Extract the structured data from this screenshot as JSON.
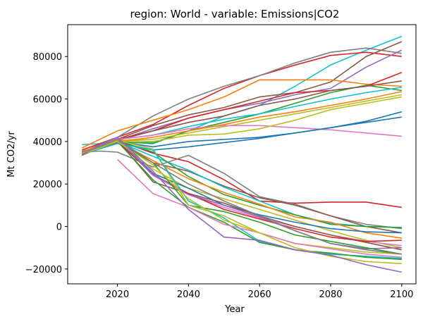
{
  "chart_data": {
    "type": "line",
    "title": "region: World - variable: Emissions|CO2",
    "xlabel": "Year",
    "ylabel": "Mt CO2/yr",
    "xlim": [
      2006,
      2104
    ],
    "ylim": [
      -27000,
      95000
    ],
    "x_ticks": [
      2020,
      2040,
      2060,
      2080,
      2100
    ],
    "y_ticks": [
      -20000,
      0,
      20000,
      40000,
      60000,
      80000
    ],
    "x_tick_labels": [
      "2020",
      "2040",
      "2060",
      "2080",
      "2100"
    ],
    "y_tick_labels": [
      "−20000",
      "0",
      "20000",
      "40000",
      "60000",
      "80000"
    ],
    "grid": false,
    "legend": false,
    "series": [
      {
        "color": "#17becf",
        "x": [
          2010,
          2020,
          2030,
          2040,
          2050,
          2060,
          2070,
          2080,
          2090,
          2100
        ],
        "y": [
          38500,
          39500,
          39500,
          45000,
          52000,
          57000,
          66000,
          76000,
          83000,
          89500
        ]
      },
      {
        "color": "#d62728",
        "x": [
          2010,
          2020,
          2030,
          2040,
          2050,
          2060,
          2070,
          2080,
          2090,
          2100
        ],
        "y": [
          36000,
          42000,
          48000,
          57000,
          65000,
          71000,
          76000,
          80500,
          82000,
          80000
        ]
      },
      {
        "color": "#7f7f7f",
        "x": [
          2010,
          2020,
          2030,
          2040,
          2050,
          2060,
          2070,
          2080,
          2090,
          2100
        ],
        "y": [
          35000,
          42000,
          52000,
          60000,
          66000,
          71000,
          77000,
          82000,
          84000,
          81500
        ]
      },
      {
        "color": "#8c564b",
        "x": [
          2010,
          2020,
          2030,
          2040,
          2050,
          2060,
          2070,
          2080,
          2090,
          2100
        ],
        "y": [
          34500,
          41000,
          47500,
          52500,
          56000,
          61000,
          63000,
          68000,
          80000,
          87000
        ]
      },
      {
        "color": "#9467bd",
        "x": [
          2010,
          2020,
          2030,
          2040,
          2050,
          2060,
          2070,
          2080,
          2090,
          2100
        ],
        "y": [
          34500,
          40500,
          46000,
          51000,
          55000,
          58000,
          62000,
          65000,
          75000,
          83000
        ]
      },
      {
        "color": "#ff7f0e",
        "x": [
          2010,
          2020,
          2030,
          2040,
          2050,
          2060,
          2070,
          2080,
          2090,
          2100
        ],
        "y": [
          37000,
          45000,
          50000,
          55000,
          61000,
          69000,
          69000,
          69000,
          67000,
          66000
        ]
      },
      {
        "color": "#d62728",
        "x": [
          2010,
          2020,
          2030,
          2040,
          2050,
          2060,
          2070,
          2080,
          2090,
          2100
        ],
        "y": [
          35000,
          41000,
          45000,
          51000,
          55000,
          59000,
          63000,
          64000,
          66000,
          72500
        ]
      },
      {
        "color": "#2ca02c",
        "x": [
          2010,
          2020,
          2030,
          2040,
          2050,
          2060,
          2070,
          2080,
          2090,
          2100
        ],
        "y": [
          34000,
          40000,
          39000,
          45000,
          49000,
          53000,
          58000,
          63000,
          66500,
          64000
        ]
      },
      {
        "color": "#8c564b",
        "x": [
          2010,
          2020,
          2030,
          2040,
          2050,
          2060,
          2070,
          2080,
          2090,
          2100
        ],
        "y": [
          35000,
          40500,
          45000,
          49000,
          52000,
          57000,
          60000,
          64000,
          66000,
          68500
        ]
      },
      {
        "color": "#17becf",
        "x": [
          2010,
          2020,
          2030,
          2040,
          2050,
          2060,
          2070,
          2080,
          2090,
          2100
        ],
        "y": [
          34000,
          41000,
          43000,
          47000,
          50500,
          53000,
          56500,
          60000,
          63000,
          65500
        ]
      },
      {
        "color": "#bcbd22",
        "x": [
          2010,
          2020,
          2030,
          2040,
          2050,
          2060,
          2070,
          2080,
          2090,
          2100
        ],
        "y": [
          34500,
          40500,
          41000,
          44000,
          47000,
          50000,
          53000,
          56000,
          59000,
          62000
        ]
      },
      {
        "color": "#e377c2",
        "x": [
          2010,
          2020,
          2030,
          2040,
          2050,
          2060,
          2070,
          2080,
          2090,
          2100
        ],
        "y": [
          34000,
          41000,
          43000,
          46000,
          47500,
          47500,
          46500,
          45500,
          44000,
          42500
        ]
      },
      {
        "color": "#bcbd22",
        "x": [
          2010,
          2020,
          2030,
          2040,
          2050,
          2060,
          2070,
          2080,
          2090,
          2100
        ],
        "y": [
          35000,
          40500,
          40000,
          43000,
          43500,
          46000,
          50000,
          55000,
          58000,
          61000
        ]
      },
      {
        "color": "#1f77b4",
        "x": [
          2010,
          2020,
          2030,
          2040,
          2050,
          2060,
          2070,
          2080,
          2090,
          2100
        ],
        "y": [
          34000,
          40000,
          37500,
          40000,
          41000,
          42000,
          44000,
          46500,
          49500,
          54000
        ]
      },
      {
        "color": "#1f77b4",
        "x": [
          2010,
          2020,
          2030,
          2040,
          2050,
          2060,
          2070,
          2080,
          2090,
          2100
        ],
        "y": [
          35000,
          39500,
          36000,
          37500,
          39500,
          41500,
          44000,
          46500,
          49000,
          51500
        ]
      },
      {
        "color": "#ff7f0e",
        "x": [
          2010,
          2020,
          2030,
          2040,
          2050,
          2060,
          2070,
          2080,
          2090,
          2100
        ],
        "y": [
          34000,
          40000,
          42000,
          45000,
          48000,
          51500,
          54000,
          57000,
          60000,
          63500
        ]
      },
      {
        "color": "#d62728",
        "x": [
          2010,
          2020,
          2030,
          2040,
          2050,
          2060,
          2070,
          2080,
          2090,
          2100
        ],
        "y": [
          34000,
          40500,
          34500,
          30500,
          22000,
          12000,
          11000,
          11500,
          11500,
          9000
        ]
      },
      {
        "color": "#7f7f7f",
        "x": [
          2010,
          2015,
          2020,
          2030,
          2040,
          2050,
          2060,
          2070,
          2080,
          2090,
          2100
        ],
        "y": [
          35000,
          35500,
          35000,
          28000,
          33500,
          25000,
          14000,
          10500,
          5000,
          1000,
          -1000
        ]
      },
      {
        "color": "#8c564b",
        "x": [
          2010,
          2020,
          2030,
          2040,
          2050,
          2060,
          2070,
          2080,
          2090,
          2100
        ],
        "y": [
          34000,
          39500,
          30000,
          26000,
          19000,
          13500,
          10000,
          5000,
          0,
          -3000
        ]
      },
      {
        "color": "#17becf",
        "x": [
          2010,
          2020,
          2030,
          2040,
          2050,
          2060,
          2070,
          2080,
          2090,
          2100
        ],
        "y": [
          34000,
          40000,
          33000,
          26500,
          18500,
          12000,
          5500,
          1500,
          0,
          -500
        ]
      },
      {
        "color": "#2ca02c",
        "x": [
          2010,
          2020,
          2030,
          2040,
          2050,
          2060,
          2070,
          2080,
          2090,
          2100
        ],
        "y": [
          34000,
          40500,
          35000,
          23500,
          15000,
          10000,
          5500,
          1000,
          0,
          -500
        ]
      },
      {
        "color": "#ff7f0e",
        "x": [
          2010,
          2020,
          2030,
          2040,
          2050,
          2060,
          2070,
          2080,
          2090,
          2100
        ],
        "y": [
          35500,
          40000,
          31000,
          22500,
          16000,
          10500,
          4500,
          2000,
          -3000,
          -5500
        ]
      },
      {
        "color": "#bcbd22",
        "x": [
          2010,
          2020,
          2030,
          2040,
          2050,
          2060,
          2070,
          2080,
          2090,
          2100
        ],
        "y": [
          34500,
          40000,
          27000,
          18000,
          13000,
          8000,
          3000,
          -2000,
          -6500,
          -10000
        ]
      },
      {
        "color": "#1f77b4",
        "x": [
          2010,
          2020,
          2030,
          2040,
          2050,
          2060,
          2070,
          2080,
          2090,
          2100
        ],
        "y": [
          34000,
          41000,
          25000,
          18000,
          10000,
          5500,
          2000,
          -1000,
          -2500,
          -3000
        ]
      },
      {
        "color": "#e377c2",
        "x": [
          2010,
          2020,
          2030,
          2040,
          2050,
          2060,
          2070,
          2080,
          2090,
          2100
        ],
        "y": [
          33500,
          41500,
          24000,
          15000,
          9000,
          4000,
          0,
          -4000,
          -7000,
          -9000
        ]
      },
      {
        "color": "#8c564b",
        "x": [
          2010,
          2020,
          2030,
          2040,
          2050,
          2060,
          2070,
          2080,
          2090,
          2100
        ],
        "y": [
          33500,
          40500,
          21000,
          15500,
          11000,
          5000,
          0,
          -4000,
          -7500,
          -11000
        ]
      },
      {
        "color": "#d62728",
        "x": [
          2010,
          2020,
          2030,
          2040,
          2050,
          2060,
          2070,
          2080,
          2090,
          2100
        ],
        "y": [
          34000,
          40000,
          24500,
          15500,
          8000,
          3500,
          -1000,
          -5000,
          -7000,
          -6500
        ]
      },
      {
        "color": "#9467bd",
        "x": [
          2010,
          2020,
          2030,
          2040,
          2050,
          2060,
          2070,
          2080,
          2090,
          2100
        ],
        "y": [
          34000,
          41000,
          24500,
          15000,
          10000,
          4500,
          -2000,
          -8000,
          -10500,
          -10000
        ]
      },
      {
        "color": "#2ca02c",
        "x": [
          2010,
          2020,
          2030,
          2040,
          2050,
          2060,
          2070,
          2080,
          2090,
          2100
        ],
        "y": [
          34000,
          40000,
          30000,
          10000,
          7000,
          2000,
          -4000,
          -7000,
          -10000,
          -13000
        ]
      },
      {
        "color": "#bcbd22",
        "x": [
          2010,
          2020,
          2030,
          2040,
          2050,
          2060,
          2070,
          2080,
          2090,
          2100
        ],
        "y": [
          34500,
          40500,
          36500,
          10000,
          5000,
          -3000,
          -8000,
          -10000,
          -12000,
          -13000
        ]
      },
      {
        "color": "#7f7f7f",
        "x": [
          2010,
          2020,
          2030,
          2040,
          2050,
          2060,
          2070,
          2080,
          2090,
          2100
        ],
        "y": [
          34000,
          41000,
          30000,
          20000,
          12000,
          5000,
          -2000,
          -8000,
          -11000,
          -13000
        ]
      },
      {
        "color": "#17becf",
        "x": [
          2010,
          2020,
          2030,
          2040,
          2050,
          2060,
          2070,
          2080,
          2090,
          2100
        ],
        "y": [
          34000,
          39000,
          36000,
          12000,
          4000,
          -7000,
          -11000,
          -13000,
          -14000,
          -15000
        ]
      },
      {
        "color": "#2ca02c",
        "x": [
          2010,
          2020,
          2030,
          2040,
          2050,
          2060,
          2070,
          2080,
          2090,
          2100
        ],
        "y": [
          34000,
          40000,
          22000,
          9000,
          2000,
          -7500,
          -11000,
          -12500,
          -14500,
          -15500
        ]
      },
      {
        "color": "#e377c2",
        "x": [
          2020,
          2030,
          2040,
          2050,
          2060,
          2070,
          2080,
          2090,
          2100
        ],
        "y": [
          31500,
          15500,
          9000,
          1000,
          -3000,
          -8000,
          -10500,
          -13000,
          -14500
        ]
      },
      {
        "color": "#bcbd22",
        "x": [
          2010,
          2020,
          2030,
          2040,
          2050,
          2060,
          2070,
          2080,
          2090,
          2100
        ],
        "y": [
          34000,
          40000,
          29000,
          13000,
          3000,
          -3000,
          -10000,
          -14000,
          -16500,
          -17500
        ]
      },
      {
        "color": "#9467bd",
        "x": [
          2010,
          2020,
          2030,
          2040,
          2050,
          2060,
          2070,
          2080,
          2090,
          2100
        ],
        "y": [
          34000,
          42000,
          26000,
          8000,
          -5000,
          -6500,
          -11000,
          -13500,
          -18000,
          -21500
        ]
      }
    ]
  }
}
